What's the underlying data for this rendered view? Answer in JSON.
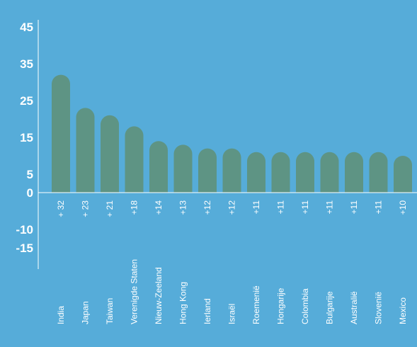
{
  "chart_data": {
    "type": "bar",
    "categories": [
      "India",
      "Japan",
      "Taiwan",
      "Verenigde Staten",
      "Nieuw-Zeeland",
      "Hong Kong",
      "Ierland",
      "Israël",
      "Roemenië",
      "Hongarije",
      "Colombia",
      "Bulgarije",
      "Australië",
      "Slovenië",
      "Mexico"
    ],
    "values": [
      32,
      23,
      21,
      18,
      14,
      13,
      12,
      12,
      11,
      11,
      11,
      11,
      11,
      11,
      10
    ],
    "value_labels": [
      "+ 32",
      "+ 23",
      "+ 21",
      "+18",
      "+14",
      "+13",
      "+12",
      "+12",
      "+11",
      "+11",
      "+11",
      "+11",
      "+11",
      "+11",
      "+10"
    ],
    "y_ticks": [
      "45",
      "35",
      "25",
      "15",
      "5",
      "0",
      "-10",
      "-15"
    ],
    "ylim": [
      -20,
      45
    ],
    "grid": false,
    "title": "",
    "xlabel": "",
    "ylabel": ""
  },
  "colors": {
    "background": "#56acd9",
    "bar": "#5e9484",
    "axis": "#ffffff",
    "text": "#ffffff"
  }
}
